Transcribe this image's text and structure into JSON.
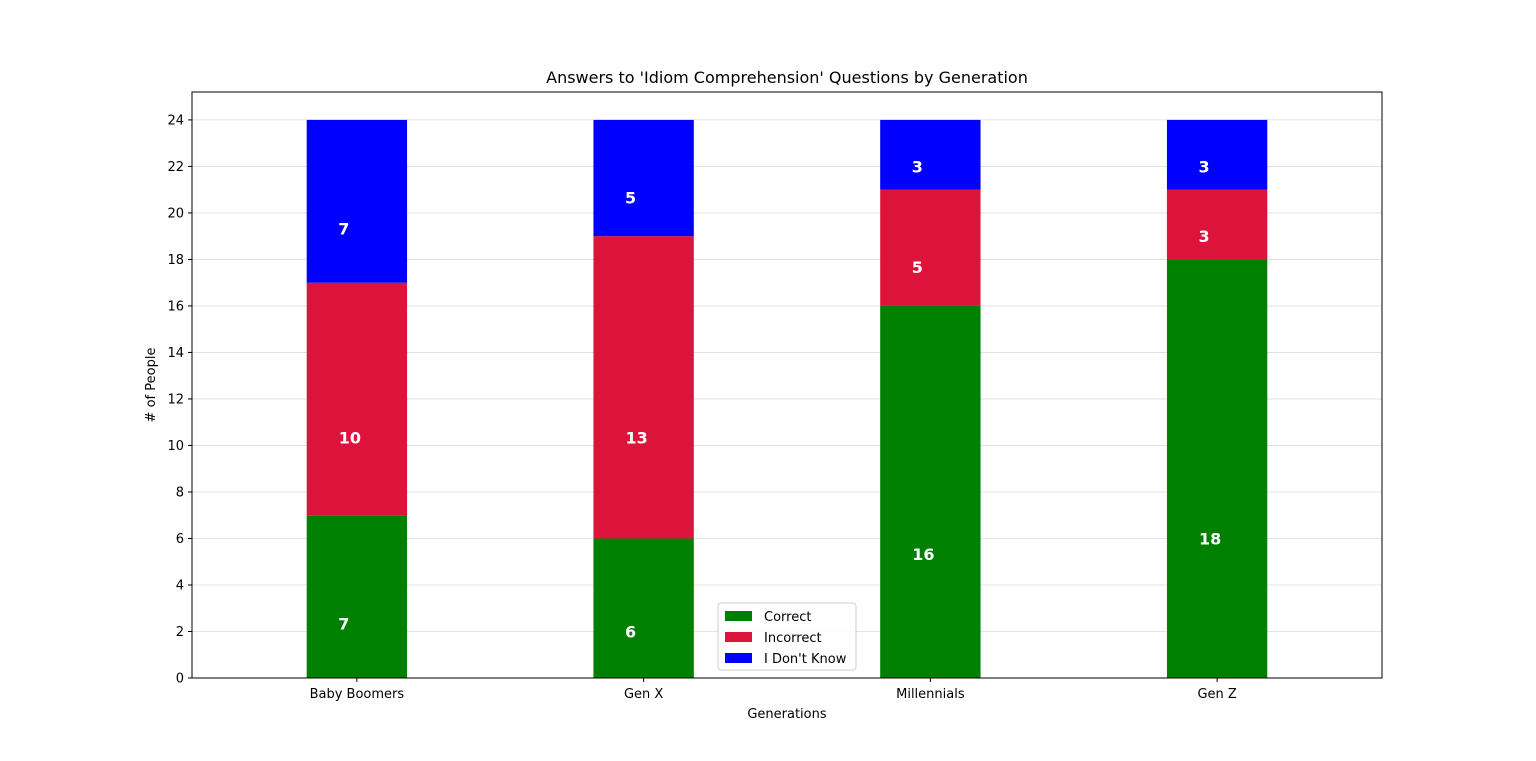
{
  "chart_data": {
    "type": "bar",
    "stacked": true,
    "title": "Answers to 'Idiom Comprehension' Questions by Generation",
    "xlabel": "Generations",
    "ylabel": "# of People",
    "categories": [
      "Baby Boomers",
      "Gen X",
      "Millennials",
      "Gen Z"
    ],
    "series": [
      {
        "name": "Correct",
        "color": "#008000",
        "values": [
          7,
          6,
          16,
          18
        ]
      },
      {
        "name": "Incorrect",
        "color": "#dc143c",
        "values": [
          10,
          13,
          5,
          3
        ]
      },
      {
        "name": "I Don't Know",
        "color": "#0000ff",
        "values": [
          7,
          5,
          3,
          3
        ]
      }
    ],
    "ylim": [
      0,
      25.2
    ],
    "yticks": [
      0,
      2,
      4,
      6,
      8,
      10,
      12,
      14,
      16,
      18,
      20,
      22,
      24
    ],
    "grid": "horizontal",
    "legend_position": "bottom-center"
  }
}
